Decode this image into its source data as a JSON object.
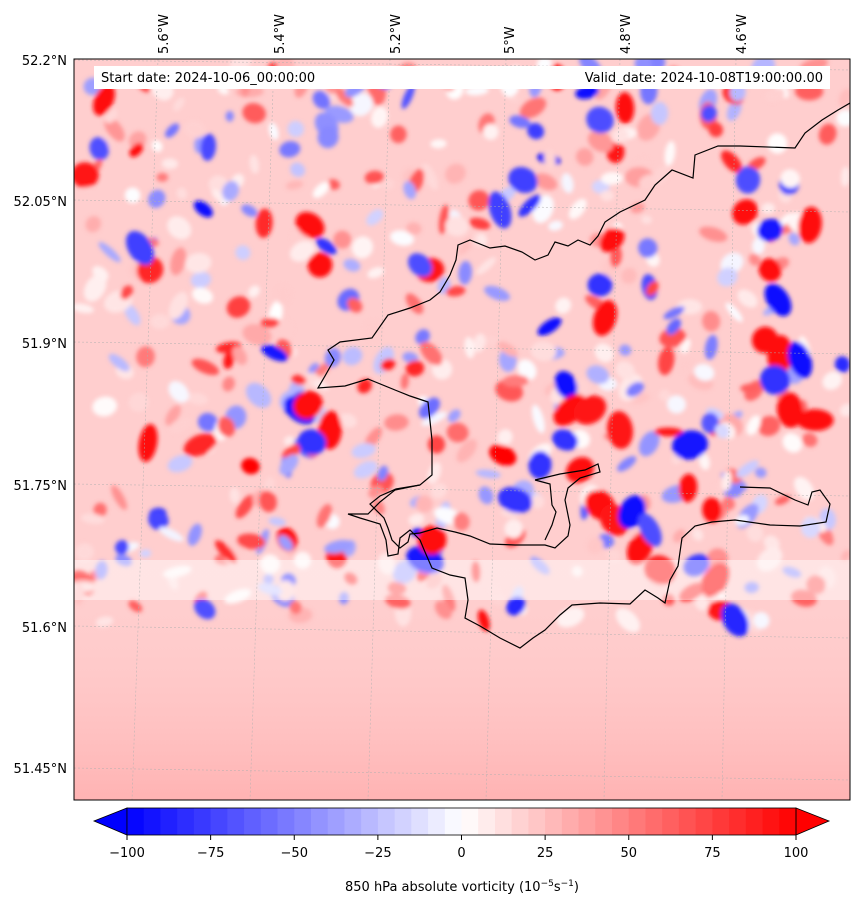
{
  "map": {
    "header": {
      "start_date": "Start date: 2024-10-06_00:00:00",
      "valid_date": "Valid_date: 2024-10-08T19:00:00.00"
    },
    "lon_labels": [
      "5.6°W",
      "5.4°W",
      "5.2°W",
      "5°W",
      "4.8°W",
      "4.6°W"
    ],
    "lat_labels": [
      "52.2°N",
      "52.05°N",
      "51.9°N",
      "51.75°N",
      "51.6°N",
      "51.45°N"
    ],
    "field": "850 hPa absolute vorticity",
    "colorbar": {
      "label": "850 hPa absolute vorticity (10",
      "label_exp1": "−5",
      "label_mid": "s",
      "label_exp2": "−1",
      "label_end": ")",
      "ticks": [
        "−100",
        "−75",
        "−50",
        "−25",
        "0",
        "25",
        "50",
        "75",
        "100"
      ],
      "min": -100,
      "max": 100,
      "low_color": "#0000ff",
      "mid_color": "#ffffff",
      "high_color": "#ff0000",
      "extend": "both"
    },
    "colors": {
      "coastline": "#000000",
      "gridline": "#b0b0b0",
      "background": "#ffcccc"
    }
  }
}
